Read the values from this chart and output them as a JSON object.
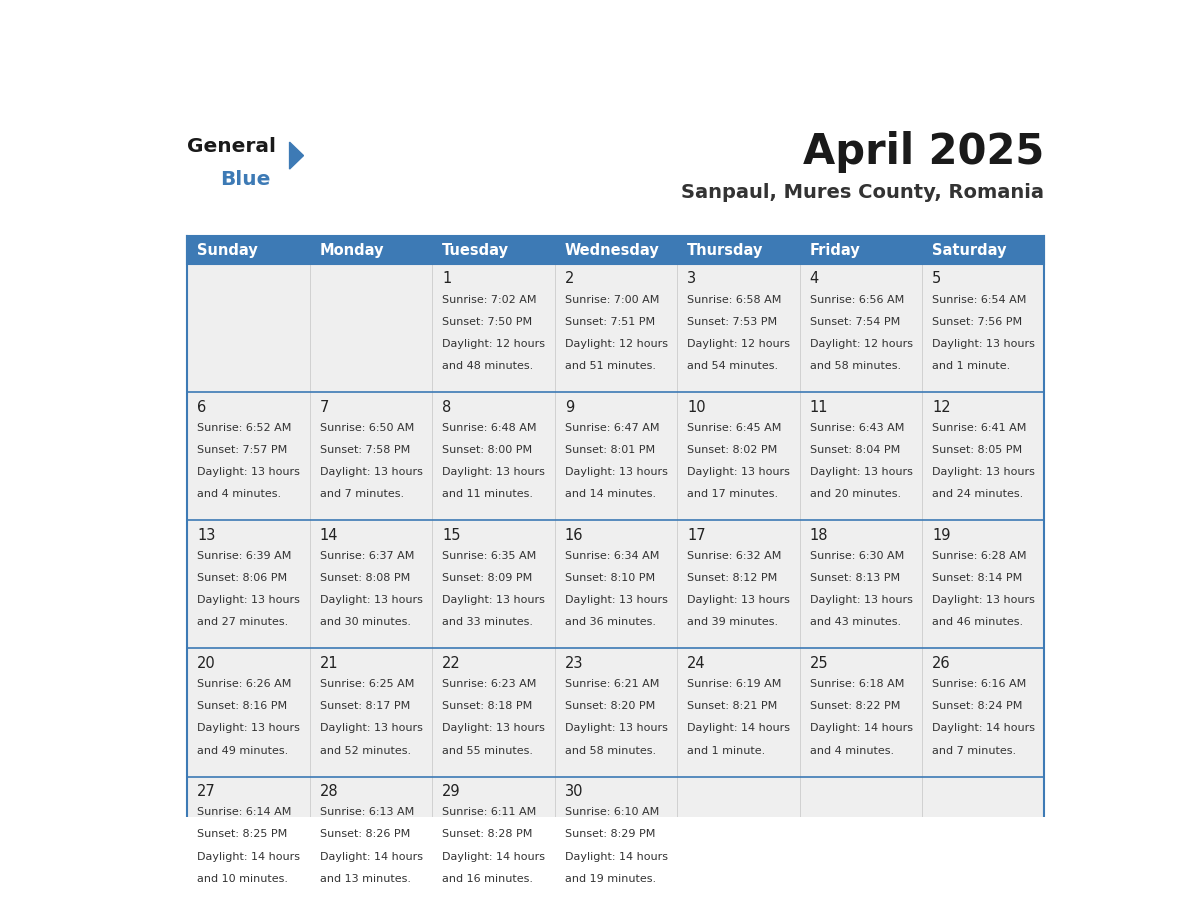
{
  "title": "April 2025",
  "subtitle": "Sanpaul, Mures County, Romania",
  "header_color": "#3d7ab5",
  "header_text_color": "#ffffff",
  "cell_bg_color": "#efefef",
  "border_color": "#3d7ab5",
  "row_line_color": "#3d7ab5",
  "text_color": "#333333",
  "day_headers": [
    "Sunday",
    "Monday",
    "Tuesday",
    "Wednesday",
    "Thursday",
    "Friday",
    "Saturday"
  ],
  "days": [
    {
      "day": 1,
      "col": 2,
      "row": 0,
      "sunrise": "7:02 AM",
      "sunset": "7:50 PM",
      "daylight_h": "12 hours",
      "daylight_m": "and 48 minutes."
    },
    {
      "day": 2,
      "col": 3,
      "row": 0,
      "sunrise": "7:00 AM",
      "sunset": "7:51 PM",
      "daylight_h": "12 hours",
      "daylight_m": "and 51 minutes."
    },
    {
      "day": 3,
      "col": 4,
      "row": 0,
      "sunrise": "6:58 AM",
      "sunset": "7:53 PM",
      "daylight_h": "12 hours",
      "daylight_m": "and 54 minutes."
    },
    {
      "day": 4,
      "col": 5,
      "row": 0,
      "sunrise": "6:56 AM",
      "sunset": "7:54 PM",
      "daylight_h": "12 hours",
      "daylight_m": "and 58 minutes."
    },
    {
      "day": 5,
      "col": 6,
      "row": 0,
      "sunrise": "6:54 AM",
      "sunset": "7:56 PM",
      "daylight_h": "13 hours",
      "daylight_m": "and 1 minute."
    },
    {
      "day": 6,
      "col": 0,
      "row": 1,
      "sunrise": "6:52 AM",
      "sunset": "7:57 PM",
      "daylight_h": "13 hours",
      "daylight_m": "and 4 minutes."
    },
    {
      "day": 7,
      "col": 1,
      "row": 1,
      "sunrise": "6:50 AM",
      "sunset": "7:58 PM",
      "daylight_h": "13 hours",
      "daylight_m": "and 7 minutes."
    },
    {
      "day": 8,
      "col": 2,
      "row": 1,
      "sunrise": "6:48 AM",
      "sunset": "8:00 PM",
      "daylight_h": "13 hours",
      "daylight_m": "and 11 minutes."
    },
    {
      "day": 9,
      "col": 3,
      "row": 1,
      "sunrise": "6:47 AM",
      "sunset": "8:01 PM",
      "daylight_h": "13 hours",
      "daylight_m": "and 14 minutes."
    },
    {
      "day": 10,
      "col": 4,
      "row": 1,
      "sunrise": "6:45 AM",
      "sunset": "8:02 PM",
      "daylight_h": "13 hours",
      "daylight_m": "and 17 minutes."
    },
    {
      "day": 11,
      "col": 5,
      "row": 1,
      "sunrise": "6:43 AM",
      "sunset": "8:04 PM",
      "daylight_h": "13 hours",
      "daylight_m": "and 20 minutes."
    },
    {
      "day": 12,
      "col": 6,
      "row": 1,
      "sunrise": "6:41 AM",
      "sunset": "8:05 PM",
      "daylight_h": "13 hours",
      "daylight_m": "and 24 minutes."
    },
    {
      "day": 13,
      "col": 0,
      "row": 2,
      "sunrise": "6:39 AM",
      "sunset": "8:06 PM",
      "daylight_h": "13 hours",
      "daylight_m": "and 27 minutes."
    },
    {
      "day": 14,
      "col": 1,
      "row": 2,
      "sunrise": "6:37 AM",
      "sunset": "8:08 PM",
      "daylight_h": "13 hours",
      "daylight_m": "and 30 minutes."
    },
    {
      "day": 15,
      "col": 2,
      "row": 2,
      "sunrise": "6:35 AM",
      "sunset": "8:09 PM",
      "daylight_h": "13 hours",
      "daylight_m": "and 33 minutes."
    },
    {
      "day": 16,
      "col": 3,
      "row": 2,
      "sunrise": "6:34 AM",
      "sunset": "8:10 PM",
      "daylight_h": "13 hours",
      "daylight_m": "and 36 minutes."
    },
    {
      "day": 17,
      "col": 4,
      "row": 2,
      "sunrise": "6:32 AM",
      "sunset": "8:12 PM",
      "daylight_h": "13 hours",
      "daylight_m": "and 39 minutes."
    },
    {
      "day": 18,
      "col": 5,
      "row": 2,
      "sunrise": "6:30 AM",
      "sunset": "8:13 PM",
      "daylight_h": "13 hours",
      "daylight_m": "and 43 minutes."
    },
    {
      "day": 19,
      "col": 6,
      "row": 2,
      "sunrise": "6:28 AM",
      "sunset": "8:14 PM",
      "daylight_h": "13 hours",
      "daylight_m": "and 46 minutes."
    },
    {
      "day": 20,
      "col": 0,
      "row": 3,
      "sunrise": "6:26 AM",
      "sunset": "8:16 PM",
      "daylight_h": "13 hours",
      "daylight_m": "and 49 minutes."
    },
    {
      "day": 21,
      "col": 1,
      "row": 3,
      "sunrise": "6:25 AM",
      "sunset": "8:17 PM",
      "daylight_h": "13 hours",
      "daylight_m": "and 52 minutes."
    },
    {
      "day": 22,
      "col": 2,
      "row": 3,
      "sunrise": "6:23 AM",
      "sunset": "8:18 PM",
      "daylight_h": "13 hours",
      "daylight_m": "and 55 minutes."
    },
    {
      "day": 23,
      "col": 3,
      "row": 3,
      "sunrise": "6:21 AM",
      "sunset": "8:20 PM",
      "daylight_h": "13 hours",
      "daylight_m": "and 58 minutes."
    },
    {
      "day": 24,
      "col": 4,
      "row": 3,
      "sunrise": "6:19 AM",
      "sunset": "8:21 PM",
      "daylight_h": "14 hours",
      "daylight_m": "and 1 minute."
    },
    {
      "day": 25,
      "col": 5,
      "row": 3,
      "sunrise": "6:18 AM",
      "sunset": "8:22 PM",
      "daylight_h": "14 hours",
      "daylight_m": "and 4 minutes."
    },
    {
      "day": 26,
      "col": 6,
      "row": 3,
      "sunrise": "6:16 AM",
      "sunset": "8:24 PM",
      "daylight_h": "14 hours",
      "daylight_m": "and 7 minutes."
    },
    {
      "day": 27,
      "col": 0,
      "row": 4,
      "sunrise": "6:14 AM",
      "sunset": "8:25 PM",
      "daylight_h": "14 hours",
      "daylight_m": "and 10 minutes."
    },
    {
      "day": 28,
      "col": 1,
      "row": 4,
      "sunrise": "6:13 AM",
      "sunset": "8:26 PM",
      "daylight_h": "14 hours",
      "daylight_m": "and 13 minutes."
    },
    {
      "day": 29,
      "col": 2,
      "row": 4,
      "sunrise": "6:11 AM",
      "sunset": "8:28 PM",
      "daylight_h": "14 hours",
      "daylight_m": "and 16 minutes."
    },
    {
      "day": 30,
      "col": 3,
      "row": 4,
      "sunrise": "6:10 AM",
      "sunset": "8:29 PM",
      "daylight_h": "14 hours",
      "daylight_m": "and 19 minutes."
    }
  ],
  "num_rows": 5,
  "num_cols": 7
}
